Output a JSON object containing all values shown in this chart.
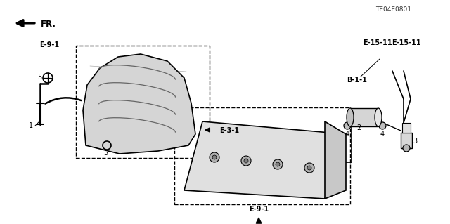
{
  "bg_color": "#ffffff",
  "fig_width": 6.4,
  "fig_height": 3.19,
  "dpi": 100,
  "title_text": "TE04E0801",
  "fr_label": "FR.",
  "labels": {
    "E9_1_top": "E-9-1",
    "E9_1_bottom": "E-9-1",
    "E3_1": "E-3-1",
    "B1_1": "B-1-1",
    "E15_11_left": "E-15-11",
    "E15_11_right": "E-15-11",
    "num1": "1",
    "num2": "2",
    "num3": "3",
    "num4a": "4",
    "num4b": "4",
    "num5a": "5",
    "num5b": "5"
  },
  "line_color": "#000000",
  "dash_color": "#000000"
}
